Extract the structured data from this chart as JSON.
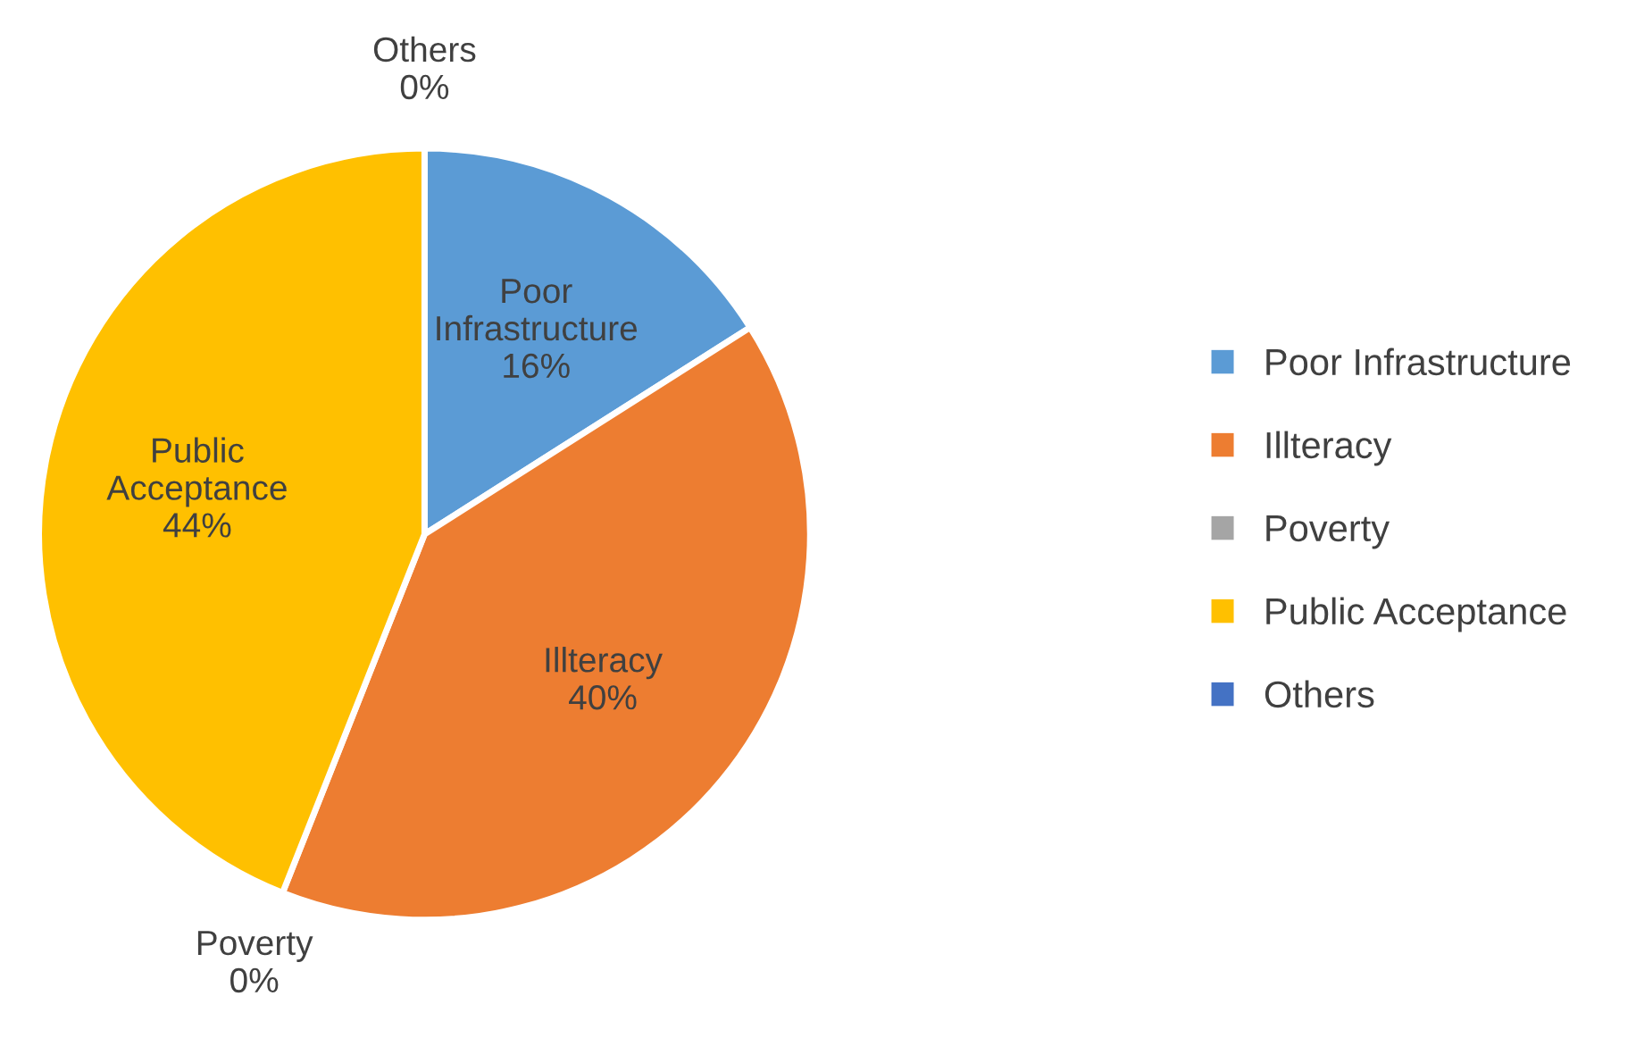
{
  "chart_data": {
    "type": "pie",
    "categories": [
      "Poor Infrastructure",
      "Illteracy",
      "Poverty",
      "Public Acceptance",
      "Others"
    ],
    "values": [
      16,
      40,
      0,
      44,
      0
    ],
    "colors": [
      "#5b9bd5",
      "#ed7d31",
      "#a5a5a5",
      "#ffc000",
      "#4472c4"
    ],
    "value_labels": [
      "16%",
      "40%",
      "0%",
      "44%",
      "0%"
    ],
    "legend": "right"
  }
}
